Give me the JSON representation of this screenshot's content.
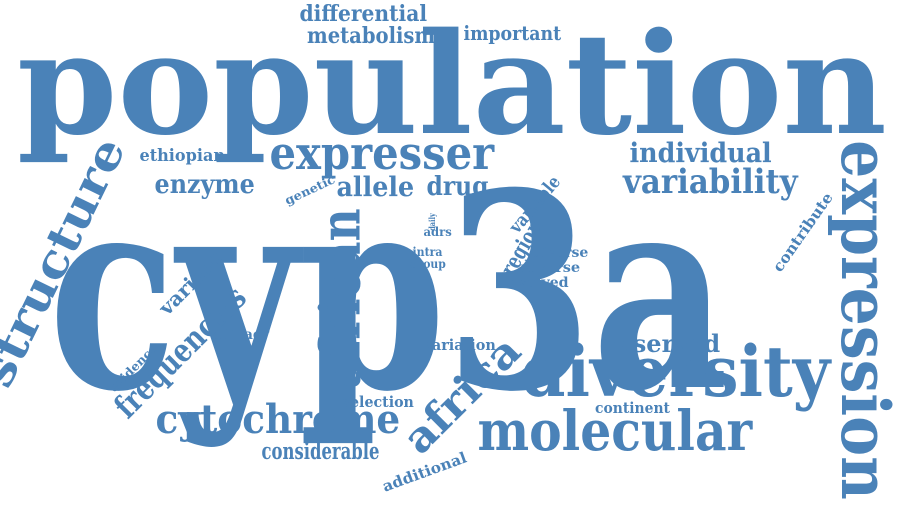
{
  "colors": {
    "word": "#4a82b8",
    "background": "#ffffff"
  },
  "words": [
    {
      "text": "cyp3a",
      "weight": 10,
      "orientation": "horizontal"
    },
    {
      "text": "population",
      "weight": 9,
      "orientation": "horizontal"
    },
    {
      "text": "diversity",
      "weight": 6,
      "orientation": "horizontal"
    },
    {
      "text": "expression",
      "weight": 6,
      "orientation": "vertical"
    },
    {
      "text": "molecular",
      "weight": 5,
      "orientation": "horizontal"
    },
    {
      "text": "african",
      "weight": 5,
      "orientation": "vertical"
    },
    {
      "text": "structure",
      "weight": 5,
      "orientation": "diagonal"
    },
    {
      "text": "expresser",
      "weight": 5,
      "orientation": "horizontal"
    },
    {
      "text": "cytochrome",
      "weight": 4,
      "orientation": "horizontal"
    },
    {
      "text": "africa",
      "weight": 4,
      "orientation": "diagonal"
    },
    {
      "text": "variability",
      "weight": 4,
      "orientation": "horizontal"
    },
    {
      "text": "frequencies",
      "weight": 4,
      "orientation": "diagonal"
    },
    {
      "text": "individual",
      "weight": 3,
      "orientation": "horizontal"
    },
    {
      "text": "allele",
      "weight": 3,
      "orientation": "horizontal"
    },
    {
      "text": "observed",
      "weight": 3,
      "orientation": "horizontal"
    },
    {
      "text": "enzyme",
      "weight": 3,
      "orientation": "horizontal"
    },
    {
      "text": "drug",
      "weight": 3,
      "orientation": "horizontal"
    },
    {
      "text": "considerable",
      "weight": 3,
      "orientation": "horizontal"
    },
    {
      "text": "metabolism",
      "weight": 2,
      "orientation": "horizontal"
    },
    {
      "text": "differential",
      "weight": 2,
      "orientation": "horizontal"
    },
    {
      "text": "region",
      "weight": 2,
      "orientation": "diagonal"
    },
    {
      "text": "variant",
      "weight": 2,
      "orientation": "diagonal"
    },
    {
      "text": "variable",
      "weight": 2,
      "orientation": "diagonal"
    },
    {
      "text": "important",
      "weight": 2,
      "orientation": "horizontal"
    },
    {
      "text": "ethiopian",
      "weight": 2,
      "orientation": "horizontal"
    },
    {
      "text": "selection",
      "weight": 2,
      "orientation": "horizontal"
    },
    {
      "text": "variation",
      "weight": 2,
      "orientation": "horizontal"
    },
    {
      "text": "continent",
      "weight": 2,
      "orientation": "horizontal"
    },
    {
      "text": "additional",
      "weight": 2,
      "orientation": "diagonal"
    },
    {
      "text": "contribute",
      "weight": 2,
      "orientation": "diagonal"
    },
    {
      "text": "efficacy",
      "weight": 2,
      "orientation": "horizontal"
    },
    {
      "text": "involved",
      "weight": 2,
      "orientation": "horizontal"
    },
    {
      "text": "adverse",
      "weight": 2,
      "orientation": "horizontal"
    },
    {
      "text": "diverse",
      "weight": 2,
      "orientation": "horizontal"
    },
    {
      "text": "evidence",
      "weight": 1,
      "orientation": "diagonal"
    },
    {
      "text": "genetic",
      "weight": 1,
      "orientation": "diagonal"
    },
    {
      "text": "adrs",
      "weight": 1,
      "orientation": "horizontal"
    },
    {
      "text": "intra",
      "weight": 1,
      "orientation": "horizontal"
    },
    {
      "text": "group",
      "weight": 1,
      "orientation": "horizontal"
    },
    {
      "text": "daily",
      "weight": 1,
      "orientation": "vertical"
    }
  ]
}
